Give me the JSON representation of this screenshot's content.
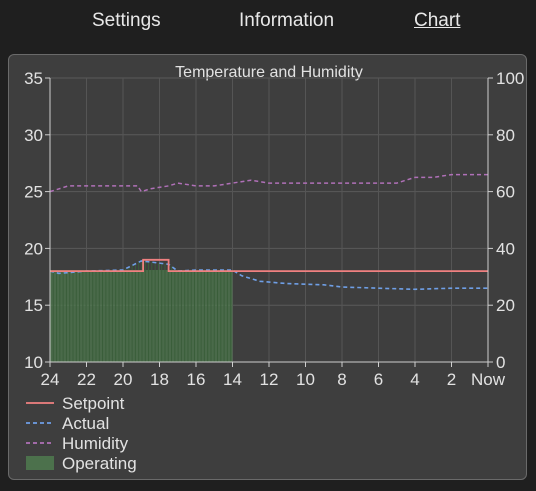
{
  "nav": {
    "tabs": [
      {
        "label": "Settings",
        "active": false
      },
      {
        "label": "Information",
        "active": false
      },
      {
        "label": "Chart",
        "active": true
      }
    ]
  },
  "colors": {
    "background": "#1f1f1f",
    "panel": "#3e3e3e",
    "setpoint": "#f08080",
    "actual": "#6f9fe6",
    "humidity": "#b070b8",
    "operating": "#4f7a4f"
  },
  "chart_data": {
    "type": "line",
    "title": "Temperature and Humidity",
    "x_ticks": [
      "24",
      "22",
      "20",
      "18",
      "16",
      "14",
      "12",
      "10",
      "8",
      "6",
      "4",
      "2",
      "Now"
    ],
    "xlim": [
      24,
      0
    ],
    "ylim_left": [
      10,
      35
    ],
    "y_ticks_left": [
      10,
      15,
      20,
      25,
      30,
      35
    ],
    "ylim_right": [
      0,
      100
    ],
    "y_ticks_right": [
      0,
      20,
      40,
      60,
      80,
      100
    ],
    "grid": true,
    "legend_position": "bottom-left",
    "series": [
      {
        "name": "Setpoint",
        "axis": "left",
        "style": "solid",
        "x": [
          24,
          18.9,
          18.9,
          17.5,
          17.5,
          0
        ],
        "y": [
          18,
          18,
          19,
          19,
          18,
          18
        ]
      },
      {
        "name": "Actual",
        "axis": "left",
        "style": "dashed",
        "x": [
          24,
          23.5,
          22,
          20,
          19,
          18.5,
          17.5,
          17,
          16,
          14,
          13.5,
          12.5,
          11,
          9,
          8,
          6,
          4,
          2,
          0
        ],
        "y": [
          18,
          17.8,
          18,
          18.1,
          18.9,
          18.8,
          18.6,
          18,
          18.1,
          18.1,
          17.6,
          17.1,
          16.9,
          16.8,
          16.6,
          16.5,
          16.4,
          16.5,
          16.5
        ]
      },
      {
        "name": "Humidity",
        "axis": "right",
        "style": "dashed",
        "x": [
          24,
          23.5,
          23,
          22,
          20,
          19.2,
          19,
          18.5,
          17.5,
          17,
          16,
          15,
          14,
          13,
          12,
          10,
          8,
          6,
          5,
          4.5,
          4,
          3,
          2,
          1,
          0
        ],
        "y": [
          60,
          61,
          62,
          62,
          62,
          62,
          60,
          61,
          62,
          63,
          62,
          62,
          63,
          64,
          63,
          63,
          63,
          63,
          63,
          64,
          65,
          65,
          66,
          66,
          66
        ]
      },
      {
        "name": "Operating",
        "axis": "left",
        "style": "area",
        "x": [
          24,
          14
        ],
        "y": [
          10,
          10
        ]
      }
    ]
  }
}
